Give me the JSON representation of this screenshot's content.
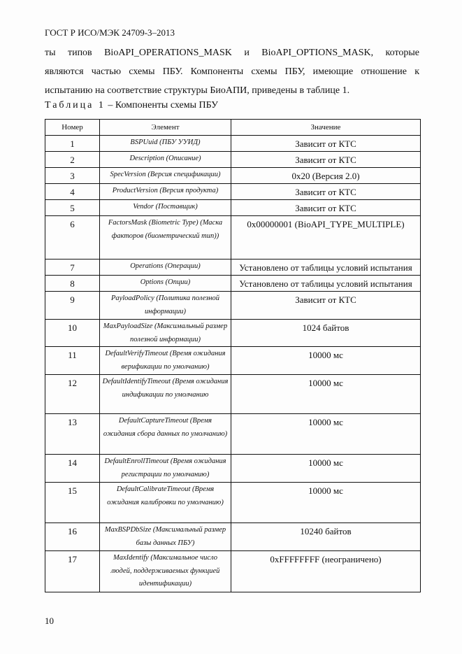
{
  "header": "ГОСТ Р ИСО/МЭК 24709-3–2013",
  "paragraph_lines": [
    "ты типов BioAPI_OPERATIONS_MASK и BioAPI_OPTIONS_MASK, которые",
    "являются частью схемы ПБУ. Компоненты схемы ПБУ, имеющие отношение к",
    "испытанию на соответствие структуры БиоАПИ, приведены в таблице 1."
  ],
  "caption": {
    "label": "Таблица 1",
    "text": " – Компоненты схемы ПБУ"
  },
  "table": {
    "headers": [
      "Номер",
      "Элемент",
      "Значение"
    ],
    "rows": [
      {
        "n": "1",
        "e": "BSPUuid (ПБУ УУИД)",
        "v": "Зависит от КТС"
      },
      {
        "n": "2",
        "e": "Description (Описание)",
        "v": "Зависит от КТС"
      },
      {
        "n": "3",
        "e": "SpecVersion (Версия спецификации)",
        "v": "0x20 (Версия 2.0)"
      },
      {
        "n": "4",
        "e": "ProductVersion (Версия продукта)",
        "v": "Зависит от КТС"
      },
      {
        "n": "5",
        "e": "Vendor (Поставщик)",
        "v": "Зависит от КТС"
      },
      {
        "n": "6",
        "e": "FactorsMask (Biometric Type) (Маска факторов (биометрический тип))",
        "v": "0x00000001 (BioAPI_TYPE_MULTIPLE)"
      },
      {
        "n": "7",
        "e": "Operations (Операции)",
        "v": "Установлено от таблицы условий испытания"
      },
      {
        "n": "8",
        "e": "Options (Опции)",
        "v": "Установлено от таблицы условий испытания"
      },
      {
        "n": "9",
        "e": "PayloadPolicy (Политика полезной информации)",
        "v": "Зависит от КТС"
      },
      {
        "n": "10",
        "e": "MaxPayloadSize (Максимальный размер полезной информации)",
        "v": "1024 байтов"
      },
      {
        "n": "11",
        "e": "DefaultVerifyTimeout (Время ожидания верификации по умолчанию)",
        "v": "10000 мс"
      },
      {
        "n": "12",
        "e": "DefaultIdentifyTimeout (Время ожидания индификации по умолчанию",
        "v": "10000 мс"
      },
      {
        "n": "13",
        "e": "DefaultCaptureTimeout (Время ожидания сбора данных по умолчанию)",
        "v": "10000 мс"
      },
      {
        "n": "14",
        "e": "DefaultEnrollTimeout (Время ожидания регистрации по умолчанию)",
        "v": "10000 мс"
      },
      {
        "n": "15",
        "e": "DefaultCalibrateTimeout (Время ожидания калибровки по умолчанию)",
        "v": "10000 мс"
      },
      {
        "n": "16",
        "e": "MaxBSPDbSize (Максимальный размер базы данных ПБУ)",
        "v": "10240 байтов"
      },
      {
        "n": "17",
        "e": "MaxIdentify (Максимальное число людей, поддерживаемых функцией идентификации)",
        "v": "0xFFFFFFFF (неограничено)"
      }
    ]
  },
  "page_number": "10"
}
